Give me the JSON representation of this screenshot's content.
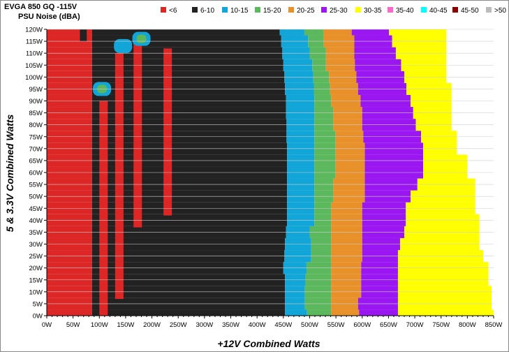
{
  "chart_data": {
    "type": "heatmap",
    "title": "EVGA 850 GQ -115V",
    "subtitle": "PSU Noise (dBA)",
    "xlabel": "+12V Combined Watts",
    "ylabel": "5 & 3.3V Combined Watts",
    "xlim": [
      0,
      850
    ],
    "ylim": [
      0,
      120
    ],
    "x_ticks": [
      "0W",
      "50W",
      "100W",
      "150W",
      "200W",
      "250W",
      "300W",
      "350W",
      "400W",
      "450W",
      "500W",
      "550W",
      "600W",
      "650W",
      "700W",
      "750W",
      "800W",
      "850W"
    ],
    "y_ticks": [
      "0W",
      "5W",
      "10W",
      "15W",
      "20W",
      "25W",
      "30W",
      "35W",
      "40W",
      "45W",
      "50W",
      "55W",
      "60W",
      "65W",
      "70W",
      "75W",
      "80W",
      "85W",
      "90W",
      "95W",
      "100W",
      "105W",
      "110W",
      "115W",
      "120W"
    ],
    "grid": true,
    "legend_position": "top",
    "legend": [
      {
        "label": "<6",
        "color": "#dd2626"
      },
      {
        "label": "6-10",
        "color": "#222222"
      },
      {
        "label": "10-15",
        "color": "#12a5d8"
      },
      {
        "label": "15-20",
        "color": "#5cb85c"
      },
      {
        "label": "20-25",
        "color": "#e8902a"
      },
      {
        "label": "25-30",
        "color": "#9a17f2"
      },
      {
        "label": "30-35",
        "color": "#ffff00"
      },
      {
        "label": "35-40",
        "color": "#ff66cc"
      },
      {
        "label": "40-45",
        "color": "#00ffff"
      },
      {
        "label": "45-50",
        "color": "#880000"
      },
      {
        "label": ">50",
        "color": "#bbbbbb"
      }
    ],
    "region_boundaries_x_watts": {
      "y_levels": [
        0,
        5,
        10,
        15,
        20,
        25,
        30,
        35,
        40,
        45,
        50,
        55,
        60,
        65,
        70,
        75,
        80,
        85,
        90,
        95,
        100,
        105,
        110,
        115,
        120
      ],
      "red_to_black": [
        86,
        86,
        86,
        86,
        86,
        86,
        86,
        86,
        86,
        86,
        86,
        86,
        86,
        86,
        86,
        86,
        86,
        86,
        86,
        86,
        86,
        86,
        86,
        86,
        86
      ],
      "black_to_blue": [
        453,
        453,
        453,
        453,
        450,
        452,
        453,
        455,
        457,
        457,
        457,
        457,
        457,
        457,
        457,
        456,
        456,
        455,
        455,
        453,
        452,
        450,
        448,
        446,
        443
      ],
      "blue_to_green": [
        495,
        491,
        491,
        492,
        494,
        503,
        503,
        500,
        509,
        509,
        509,
        509,
        509,
        509,
        509,
        509,
        509,
        509,
        509,
        508,
        507,
        505,
        500,
        497,
        490
      ],
      "green_to_orange": [
        541,
        541,
        541,
        541,
        541,
        541,
        541,
        541,
        541,
        541,
        545,
        545,
        549,
        549,
        549,
        549,
        545,
        545,
        541,
        539,
        537,
        531,
        531,
        527,
        527
      ],
      "orange_to_purple": [
        594,
        592,
        598,
        598,
        598,
        600,
        600,
        600,
        600,
        600,
        605,
        605,
        605,
        605,
        605,
        602,
        600,
        600,
        597,
        592,
        589,
        586,
        585,
        585,
        580
      ],
      "purple_to_yellow": [
        668,
        668,
        668,
        668,
        668,
        668,
        672,
        680,
        683,
        683,
        692,
        705,
        716,
        716,
        716,
        712,
        702,
        697,
        692,
        684,
        680,
        674,
        664,
        657,
        651
      ],
      "yellow_end": [
        866,
        846,
        846,
        840,
        840,
        830,
        823,
        823,
        823,
        815,
        815,
        815,
        800,
        800,
        780,
        780,
        770,
        770,
        770,
        770,
        760,
        760,
        760,
        760,
        760
      ]
    },
    "red_columns": [
      {
        "x_range": [
          63,
          86
        ],
        "y_range": [
          115,
          120
        ],
        "value_band": "<6"
      },
      {
        "x_range": [
          100,
          116
        ],
        "y_range": [
          0,
          90
        ],
        "value_band": "<6"
      },
      {
        "x_range": [
          130,
          146
        ],
        "y_range": [
          7,
          110
        ],
        "value_band": "<6"
      },
      {
        "x_range": [
          165,
          181
        ],
        "y_range": [
          37,
          115
        ],
        "value_band": "<6"
      },
      {
        "x_range": [
          222,
          238
        ],
        "y_range": [
          42,
          112
        ],
        "value_band": "<6"
      }
    ],
    "hot_spots": [
      {
        "x": 105,
        "y": 95,
        "value_band": "15-20"
      },
      {
        "x": 145,
        "y": 113,
        "value_band": "10-15"
      },
      {
        "x": 180,
        "y": 116,
        "value_band": "15-20"
      }
    ]
  }
}
